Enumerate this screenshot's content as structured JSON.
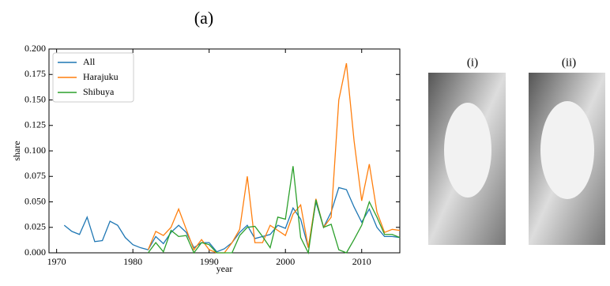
{
  "chart_data": {
    "type": "line",
    "title": "(a)",
    "x_label": "year",
    "y_label": "share",
    "x": [
      1971,
      1972,
      1973,
      1974,
      1975,
      1976,
      1977,
      1978,
      1979,
      1980,
      1981,
      1982,
      1983,
      1984,
      1985,
      1986,
      1987,
      1988,
      1989,
      1990,
      1991,
      1992,
      1993,
      1994,
      1995,
      1996,
      1997,
      1998,
      1999,
      2000,
      2001,
      2002,
      2003,
      2004,
      2005,
      2006,
      2007,
      2008,
      2009,
      2010,
      2011,
      2012,
      2013,
      2014,
      2015
    ],
    "series": [
      {
        "name": "All",
        "color": "#1f77b4",
        "values": [
          0.027,
          0.021,
          0.018,
          0.035,
          0.011,
          0.012,
          0.031,
          0.027,
          0.015,
          0.008,
          0.005,
          0.003,
          0.016,
          0.009,
          0.02,
          0.027,
          0.02,
          0.005,
          0.01,
          0.01,
          0.001,
          0.004,
          0.01,
          0.02,
          0.027,
          0.014,
          0.016,
          0.018,
          0.027,
          0.024,
          0.044,
          0.033,
          0.005,
          0.05,
          0.025,
          0.04,
          0.064,
          0.062,
          0.045,
          0.03,
          0.043,
          0.025,
          0.016,
          0.016,
          0.015
        ]
      },
      {
        "name": "Harajuku",
        "color": "#ff7f0e",
        "values": [
          null,
          null,
          null,
          null,
          null,
          null,
          null,
          null,
          null,
          null,
          null,
          0.003,
          0.021,
          0.017,
          0.025,
          0.043,
          0.023,
          0.003,
          0.013,
          0.003,
          0,
          0,
          0.01,
          0.023,
          0.075,
          0.01,
          0.01,
          0.027,
          0.022,
          0.017,
          0.038,
          0.047,
          0.005,
          0.053,
          0.025,
          0.035,
          0.15,
          0.186,
          0.11,
          0.051,
          0.087,
          0.04,
          0.02,
          0.023,
          0.022
        ]
      },
      {
        "name": "Shibuya",
        "color": "#2ca02c",
        "values": [
          null,
          null,
          null,
          null,
          null,
          null,
          null,
          null,
          null,
          null,
          null,
          0,
          0.01,
          0.001,
          0.022,
          0.016,
          0.017,
          0,
          0.01,
          0.008,
          0,
          0,
          0,
          0.017,
          0.025,
          0.026,
          0.016,
          0.005,
          0.035,
          0.033,
          0.085,
          0.015,
          0,
          0.052,
          0.025,
          0.028,
          0.003,
          0,
          0.013,
          0.027,
          0.05,
          0.035,
          0.018,
          0.018,
          0.015
        ]
      }
    ],
    "xlim": [
      1969,
      2015
    ],
    "xticks": [
      1970,
      1980,
      1990,
      2000,
      2010
    ],
    "ylim": [
      0,
      0.2
    ],
    "yticks": [
      {
        "value": 0,
        "label": "0.000"
      },
      {
        "value": 0.025,
        "label": "0.025"
      },
      {
        "value": 0.05,
        "label": "0.050"
      },
      {
        "value": 0.075,
        "label": "0.075"
      },
      {
        "value": 0.1,
        "label": "0.100"
      },
      {
        "value": 0.125,
        "label": "0.125"
      },
      {
        "value": 0.15,
        "label": "0.150"
      },
      {
        "value": 0.175,
        "label": "0.175"
      },
      {
        "value": 0.2,
        "label": "0.200"
      }
    ],
    "legend": "upper left"
  },
  "images": [
    {
      "label": "(i)"
    },
    {
      "label": "(ii)"
    }
  ]
}
